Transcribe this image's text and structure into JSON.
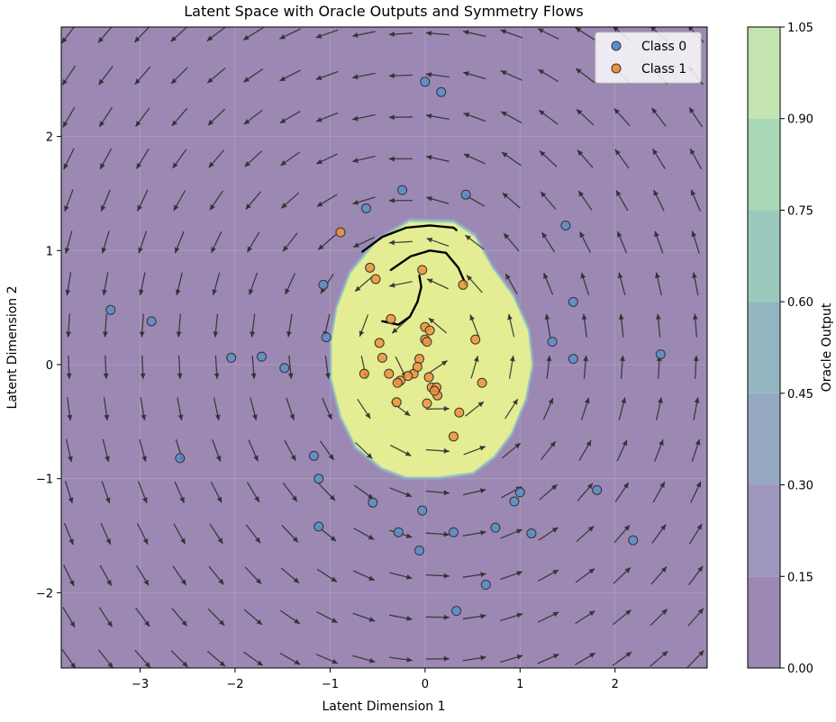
{
  "chart_data": {
    "type": "scatter",
    "title": "Latent Space with Oracle Outputs and Symmetry Flows",
    "xlabel": "Latent Dimension 1",
    "ylabel": "Latent Dimension 2",
    "xlim": [
      -3.83,
      2.97
    ],
    "ylim": [
      -2.66,
      2.96
    ],
    "x_ticks": [
      -3,
      -2,
      -1,
      0,
      1,
      2
    ],
    "y_ticks": [
      -2,
      -1,
      0,
      1,
      2
    ],
    "grid": true,
    "legend_position": "top-right",
    "colorbar": {
      "label": "Oracle Output",
      "ticks": [
        0.0,
        0.15,
        0.3,
        0.45,
        0.6,
        0.75,
        0.9,
        1.05
      ],
      "tick_labels": [
        "0.00",
        "0.15",
        "0.30",
        "0.45",
        "0.60",
        "0.75",
        "0.90",
        "1.05"
      ],
      "colors": [
        "#9b89b3",
        "#9d97bd",
        "#97a8c2",
        "#92b7c0",
        "#9cc9bd",
        "#a8d8b5",
        "#c3e3b0",
        "#e4ed93"
      ]
    },
    "contour_region": {
      "description_free": true,
      "boundary": [
        [
          -0.16,
          1.25
        ],
        [
          0.3,
          1.24
        ],
        [
          0.52,
          1.12
        ],
        [
          0.7,
          0.85
        ],
        [
          0.92,
          0.6
        ],
        [
          1.08,
          0.3
        ],
        [
          1.12,
          0.0
        ],
        [
          1.05,
          -0.3
        ],
        [
          0.9,
          -0.6
        ],
        [
          0.72,
          -0.8
        ],
        [
          0.5,
          -0.94
        ],
        [
          0.15,
          -0.98
        ],
        [
          -0.2,
          -0.98
        ],
        [
          -0.45,
          -0.9
        ],
        [
          -0.72,
          -0.72
        ],
        [
          -0.88,
          -0.45
        ],
        [
          -0.98,
          -0.12
        ],
        [
          -0.98,
          0.2
        ],
        [
          -0.92,
          0.5
        ],
        [
          -0.78,
          0.8
        ],
        [
          -0.5,
          1.08
        ]
      ],
      "inside_level_color": "#e4ed93",
      "outside_level_color": "#9b89b3"
    },
    "series": [
      {
        "name": "Class 0",
        "color": "#5b8fc7",
        "points": [
          [
            0.0,
            2.48
          ],
          [
            0.17,
            2.39
          ],
          [
            -0.24,
            1.53
          ],
          [
            0.43,
            1.49
          ],
          [
            -0.62,
            1.37
          ],
          [
            1.48,
            1.22
          ],
          [
            -1.07,
            0.7
          ],
          [
            1.56,
            0.55
          ],
          [
            -3.31,
            0.48
          ],
          [
            -2.88,
            0.38
          ],
          [
            1.34,
            0.2
          ],
          [
            -1.04,
            0.24
          ],
          [
            -2.04,
            0.06
          ],
          [
            -1.72,
            0.07
          ],
          [
            -1.48,
            -0.03
          ],
          [
            1.56,
            0.05
          ],
          [
            2.48,
            0.09
          ],
          [
            -2.58,
            -0.82
          ],
          [
            -1.17,
            -0.8
          ],
          [
            -1.12,
            -1.0
          ],
          [
            1.81,
            -1.1
          ],
          [
            1.0,
            -1.12
          ],
          [
            0.94,
            -1.2
          ],
          [
            -0.55,
            -1.21
          ],
          [
            -0.03,
            -1.28
          ],
          [
            0.74,
            -1.43
          ],
          [
            -1.12,
            -1.42
          ],
          [
            -0.28,
            -1.47
          ],
          [
            0.3,
            -1.47
          ],
          [
            1.12,
            -1.48
          ],
          [
            2.19,
            -1.54
          ],
          [
            -0.06,
            -1.63
          ],
          [
            0.64,
            -1.93
          ],
          [
            0.33,
            -2.16
          ]
        ]
      },
      {
        "name": "Class 1",
        "color": "#f0923a",
        "points": [
          [
            -0.89,
            1.16
          ],
          [
            -0.58,
            0.85
          ],
          [
            -0.52,
            0.75
          ],
          [
            -0.03,
            0.83
          ],
          [
            0.4,
            0.7
          ],
          [
            -0.36,
            0.4
          ],
          [
            0.0,
            0.33
          ],
          [
            0.05,
            0.3
          ],
          [
            0.0,
            0.22
          ],
          [
            0.53,
            0.22
          ],
          [
            0.02,
            0.2
          ],
          [
            -0.48,
            0.19
          ],
          [
            -0.45,
            0.06
          ],
          [
            -0.06,
            0.05
          ],
          [
            -0.38,
            -0.08
          ],
          [
            -0.64,
            -0.08
          ],
          [
            -0.12,
            -0.08
          ],
          [
            -0.18,
            -0.1
          ],
          [
            -0.08,
            -0.02
          ],
          [
            -0.26,
            -0.14
          ],
          [
            -0.29,
            -0.16
          ],
          [
            0.04,
            -0.11
          ],
          [
            0.07,
            -0.2
          ],
          [
            0.12,
            -0.2
          ],
          [
            0.13,
            -0.27
          ],
          [
            0.1,
            -0.23
          ],
          [
            0.6,
            -0.16
          ],
          [
            -0.3,
            -0.33
          ],
          [
            0.02,
            -0.34
          ],
          [
            0.36,
            -0.42
          ],
          [
            0.3,
            -0.63
          ]
        ]
      }
    ],
    "flow_lines": [
      [
        [
          -0.66,
          0.99
        ],
        [
          -0.45,
          1.12
        ],
        [
          -0.2,
          1.2
        ],
        [
          0.05,
          1.22
        ],
        [
          0.3,
          1.2
        ],
        [
          0.33,
          1.18
        ]
      ],
      [
        [
          -0.36,
          0.83
        ],
        [
          -0.15,
          0.95
        ],
        [
          0.05,
          1.0
        ],
        [
          0.22,
          0.98
        ],
        [
          0.35,
          0.85
        ],
        [
          0.43,
          0.7
        ]
      ],
      [
        [
          -0.45,
          0.38
        ],
        [
          -0.28,
          0.35
        ],
        [
          -0.16,
          0.42
        ],
        [
          -0.08,
          0.55
        ],
        [
          -0.04,
          0.68
        ],
        [
          -0.06,
          0.78
        ]
      ]
    ],
    "vector_field": {
      "grid_x_range": [
        -3.75,
        2.85
      ],
      "grid_y_range": [
        -2.58,
        2.9
      ],
      "nx": 18,
      "ny": 16
    }
  }
}
